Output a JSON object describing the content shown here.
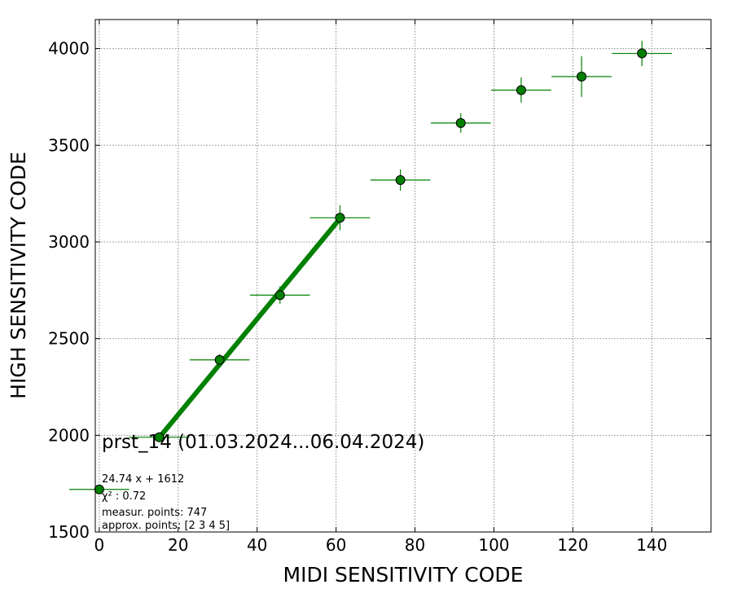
{
  "chart_data": {
    "type": "scatter",
    "title": "prst_14 (01.03.2024...06.04.2024)",
    "xlabel": "MIDI SENSITIVITY CODE",
    "ylabel": "HIGH SENSITIVITY CODE",
    "xlim": [
      -1,
      155
    ],
    "ylim": [
      1500,
      4150
    ],
    "xticks": [
      0,
      20,
      40,
      60,
      80,
      100,
      120,
      140
    ],
    "yticks": [
      1500,
      2000,
      2500,
      3000,
      3500,
      4000
    ],
    "grid": true,
    "series": [
      {
        "type": "scatter-errorbar",
        "color": "#008000",
        "points": [
          {
            "x": 0,
            "y": 1720,
            "xerr": 7.6,
            "yerr": 0
          },
          {
            "x": 15.2,
            "y": 1990,
            "xerr": 7.6,
            "yerr": 0
          },
          {
            "x": 30.5,
            "y": 2390,
            "xerr": 7.6,
            "yerr": 30
          },
          {
            "x": 45.8,
            "y": 2725,
            "xerr": 7.6,
            "yerr": 45
          },
          {
            "x": 61.0,
            "y": 3125,
            "xerr": 7.6,
            "yerr": 65
          },
          {
            "x": 76.3,
            "y": 3320,
            "xerr": 7.6,
            "yerr": 55
          },
          {
            "x": 91.6,
            "y": 3615,
            "xerr": 7.6,
            "yerr": 50
          },
          {
            "x": 106.9,
            "y": 3785,
            "xerr": 7.6,
            "yerr": 65
          },
          {
            "x": 122.2,
            "y": 3855,
            "xerr": 7.6,
            "yerr": 105
          },
          {
            "x": 137.5,
            "y": 3975,
            "xerr": 7.6,
            "yerr": 65
          }
        ]
      }
    ],
    "fit": {
      "color": "#008000",
      "slope": 24.74,
      "intercept": 1612,
      "x_range": [
        15.2,
        61.0
      ]
    },
    "annotations": [
      "24.74 x + 1612",
      "χ² : 0.72",
      "measur. points: 747",
      "approx. points: [2 3 4 5]"
    ]
  }
}
